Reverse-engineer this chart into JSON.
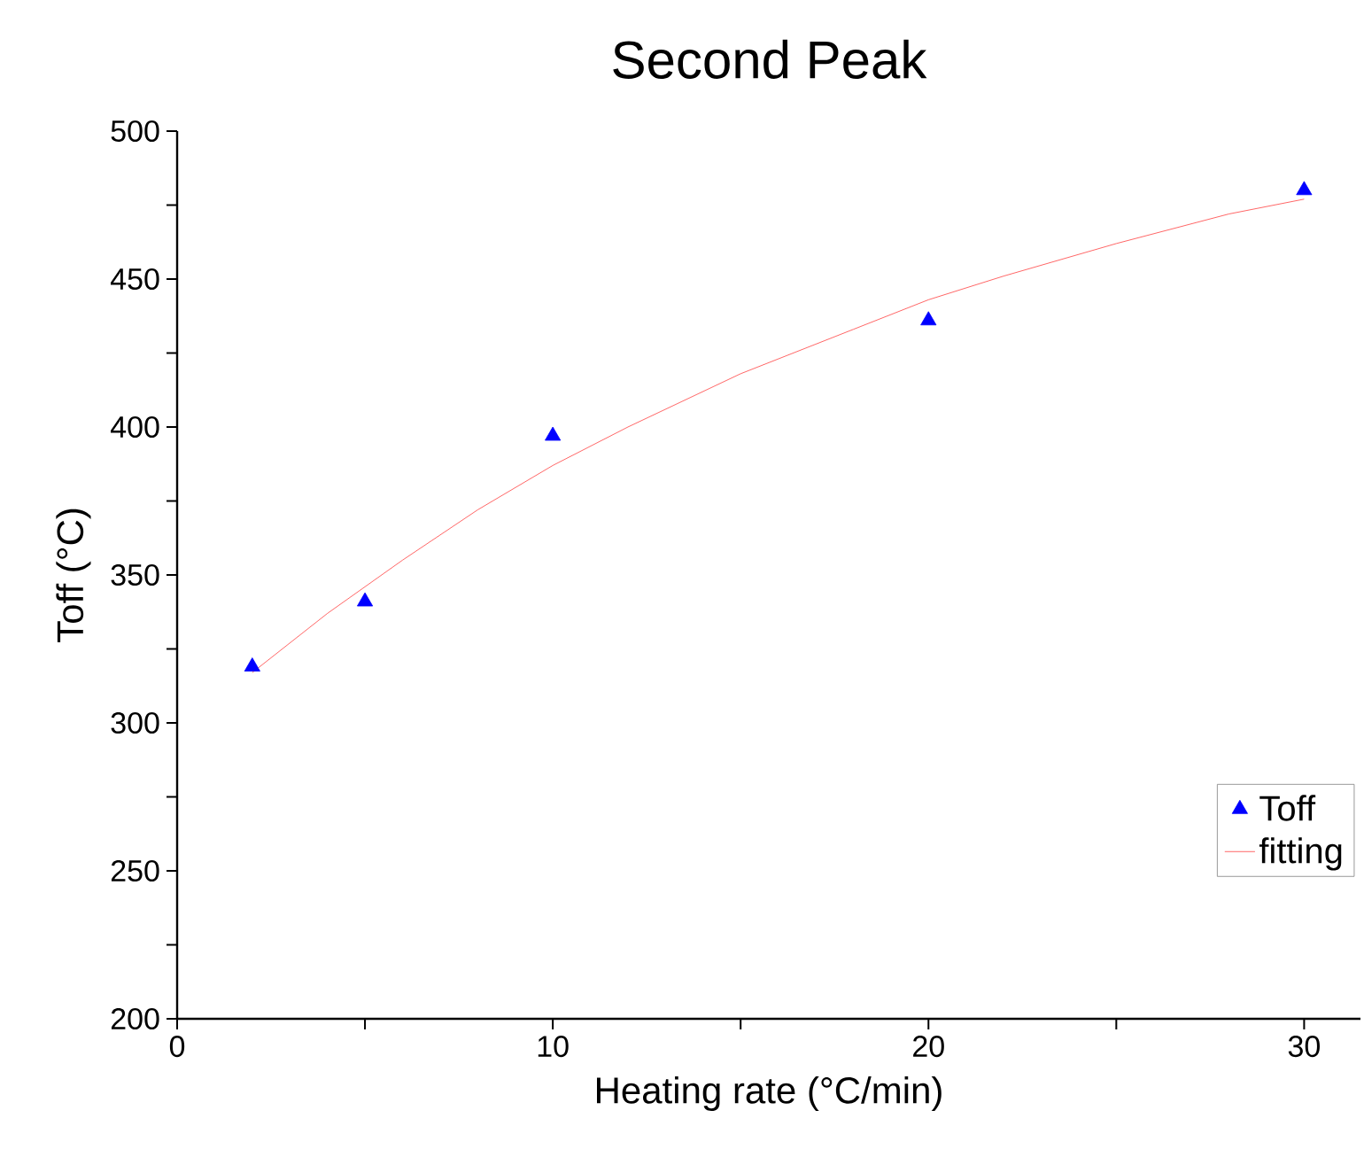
{
  "chart_data": {
    "type": "scatter",
    "title": "Second Peak",
    "xlabel": "Heating rate (°C/min)",
    "ylabel": "Toff (°C)",
    "xlim": [
      0,
      31.5
    ],
    "ylim": [
      200,
      500
    ],
    "xticks": [
      0,
      {
        "value": 5,
        "label": null
      },
      10,
      {
        "value": 15,
        "label": null
      },
      20,
      {
        "value": 25,
        "label": null
      },
      30
    ],
    "yticks": [
      200,
      {
        "value": 225,
        "label": null
      },
      250,
      {
        "value": 275,
        "label": null
      },
      300,
      {
        "value": 325,
        "label": null
      },
      350,
      {
        "value": 375,
        "label": null
      },
      400,
      {
        "value": 425,
        "label": null
      },
      450,
      {
        "value": 475,
        "label": null
      },
      500
    ],
    "grid": false,
    "legend": "bottom right",
    "series": [
      {
        "name": "Toff",
        "marker": "triangle",
        "color": "#0000ff",
        "x": [
          2,
          5,
          10,
          20,
          30
        ],
        "values": [
          319,
          341,
          397,
          436,
          480
        ]
      },
      {
        "name": "fitting",
        "type": "line",
        "marker": "none",
        "color": "#ff4040",
        "x": [
          2,
          4,
          6,
          8,
          10,
          12,
          15,
          18,
          20,
          22,
          25,
          28,
          30
        ],
        "values": [
          317,
          337,
          355,
          372,
          387,
          400,
          418,
          433,
          443,
          451,
          462,
          472,
          477
        ]
      }
    ]
  }
}
